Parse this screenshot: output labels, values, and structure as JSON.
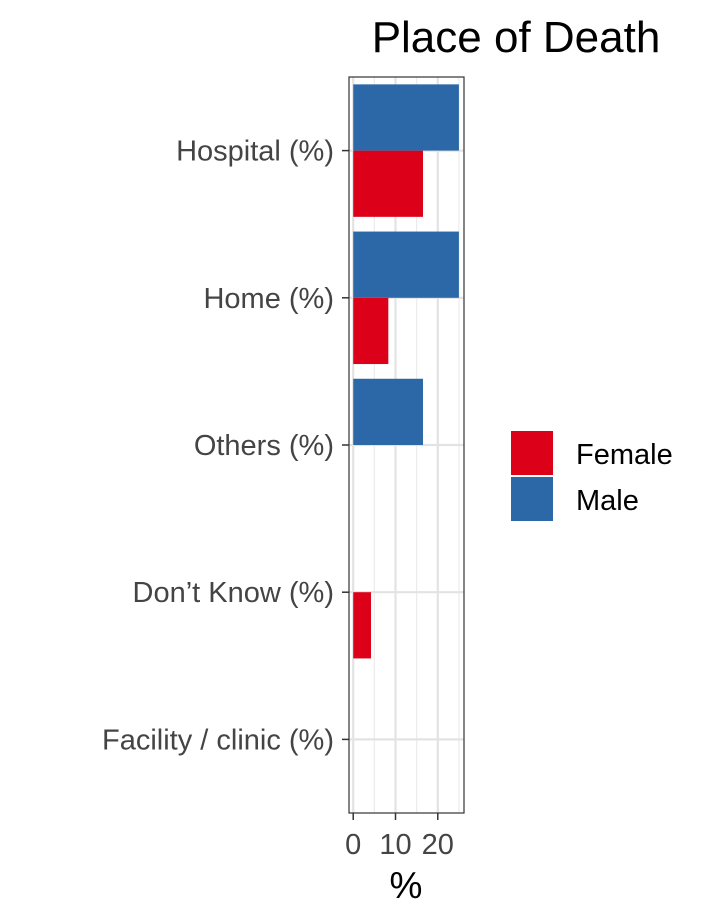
{
  "chart_data": {
    "type": "bar",
    "orientation": "horizontal",
    "title": "Place of Death",
    "xlabel": "%",
    "ylabel": "",
    "categories": [
      "Hospital (%)",
      "Home (%)",
      "Others (%)",
      "Don’t Know (%)",
      "Facility / clinic (%)"
    ],
    "series": [
      {
        "name": "Female",
        "color": "#dc0019",
        "values": [
          16.5,
          8.3,
          0,
          4.2,
          0
        ]
      },
      {
        "name": "Male",
        "color": "#2c68a7",
        "values": [
          25,
          25,
          16.5,
          0,
          0
        ]
      }
    ],
    "xlim": [
      -1,
      26.2
    ],
    "xticks": [
      0,
      10,
      20
    ],
    "xtick_labels": [
      "0",
      "10",
      "20"
    ],
    "grid": true,
    "legend_position": "right"
  }
}
